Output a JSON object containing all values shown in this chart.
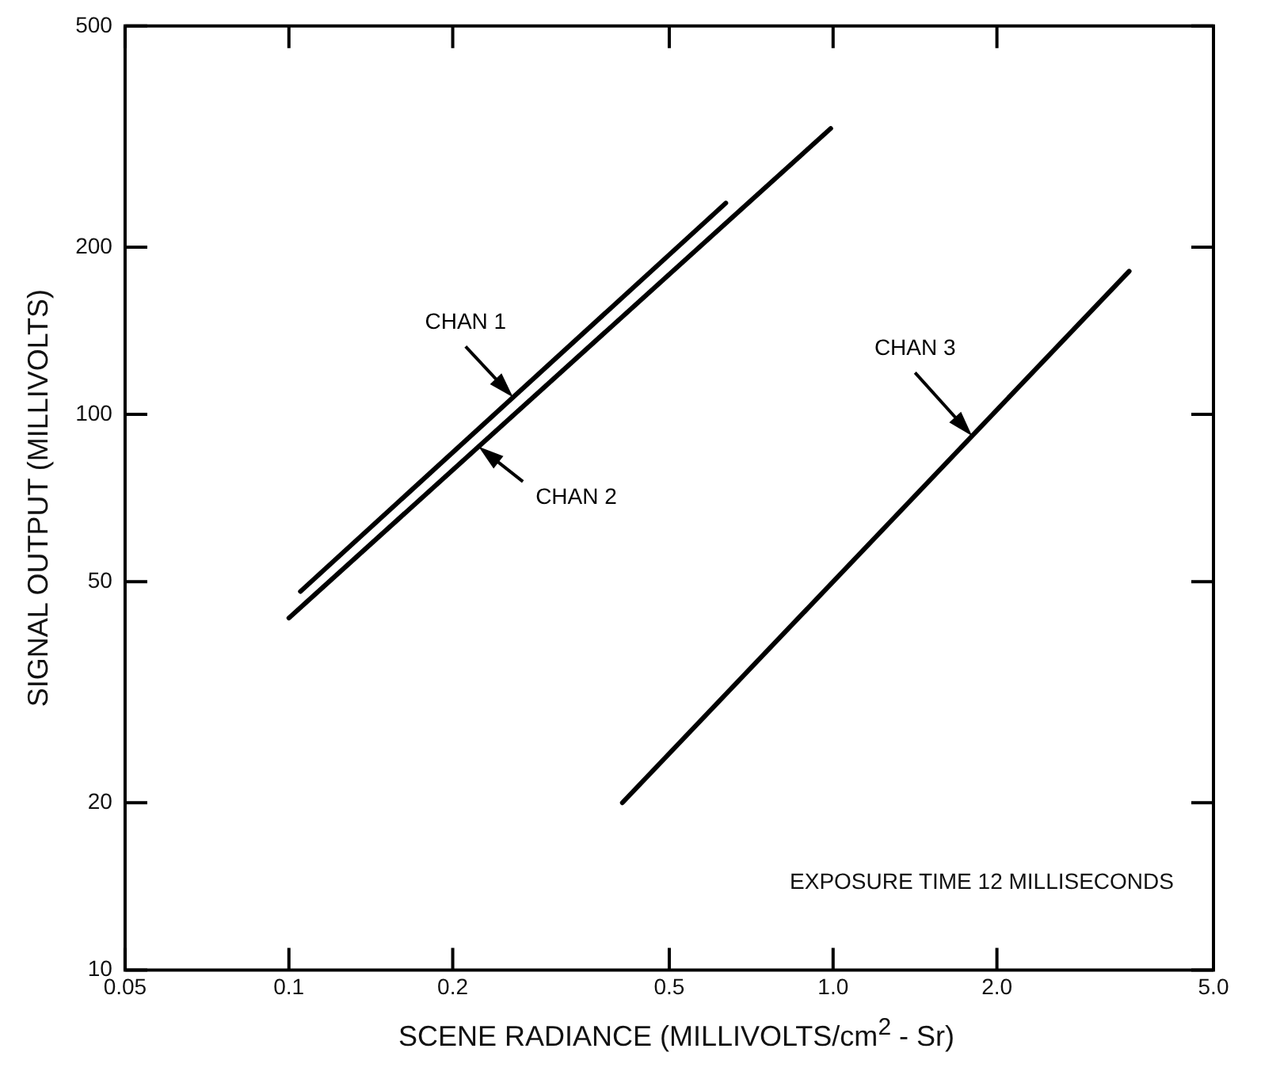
{
  "chart_data": {
    "type": "line",
    "xlabel": "SCENE RADIANCE (MILLIVOLTS/cm$^{2}$ - Sr)",
    "ylabel": "SIGNAL OUTPUT (MILLIVOLTS)",
    "log": "xy",
    "grid": false,
    "legend": false,
    "marker": "none",
    "line_style": "solid",
    "xlim": [
      0.05,
      5.0
    ],
    "xticks": [
      0.05,
      0.1,
      0.2,
      0.5,
      {
        "value": 1.0,
        "label": "1.0"
      },
      {
        "value": 2.0,
        "label": "2.0"
      },
      {
        "value": 5.0,
        "label": "5.0"
      }
    ],
    "ylim": [
      10,
      500
    ],
    "yticks": [
      10,
      20,
      50,
      100,
      200,
      500
    ],
    "series": [
      {
        "name": "CHAN 1",
        "color": "#000000",
        "x": [
          0.105,
          0.635
        ],
        "values": [
          48,
          240
        ]
      },
      {
        "name": "CHAN 2",
        "color": "#000000",
        "x": [
          0.1,
          0.99
        ],
        "values": [
          43,
          327
        ]
      },
      {
        "name": "CHAN 3",
        "color": "#000000",
        "x": [
          0.41,
          3.5
        ],
        "values": [
          20,
          181
        ]
      }
    ],
    "annotations": [
      "EXPOSURE TIME 12 MILLISECONDS"
    ]
  }
}
